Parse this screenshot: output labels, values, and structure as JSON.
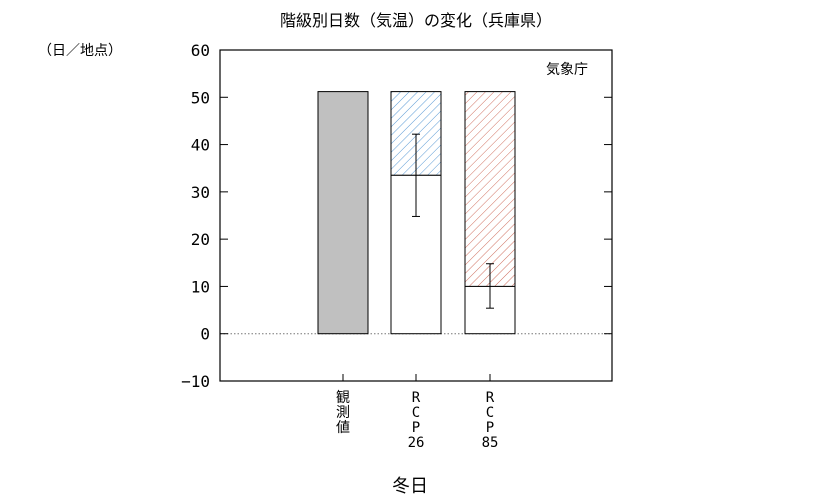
{
  "chart_data": {
    "type": "bar",
    "title": "階級別日数（気温）の変化（兵庫県）",
    "unit_label": "（日／地点）",
    "credit": "気象庁",
    "xlabel": "冬日",
    "ylim": [
      -10,
      60
    ],
    "yticks": [
      -10,
      0,
      10,
      20,
      30,
      40,
      50,
      60
    ],
    "zero_line": "dotted",
    "categories": [
      {
        "id": "obs",
        "label_lines": [
          "観",
          "測",
          "値"
        ]
      },
      {
        "id": "rcp26",
        "label_lines": [
          "R",
          "C",
          "P",
          "26"
        ]
      },
      {
        "id": "rcp85",
        "label_lines": [
          "R",
          "C",
          "P",
          "85"
        ]
      }
    ],
    "baseline_value": 51.2,
    "future_values": [
      null,
      33.5,
      10.0
    ],
    "change_values": [
      null,
      -17.7,
      -41.2
    ],
    "error_ranges": [
      null,
      [
        24.8,
        42.2
      ],
      [
        5.4,
        14.8
      ]
    ],
    "colors": {
      "observed_fill": "#c0c0c0",
      "rcp26_hatch": "#5b9bd5",
      "rcp85_hatch": "#d07060",
      "future_fill": "#ffffff",
      "axis": "#000000"
    }
  }
}
